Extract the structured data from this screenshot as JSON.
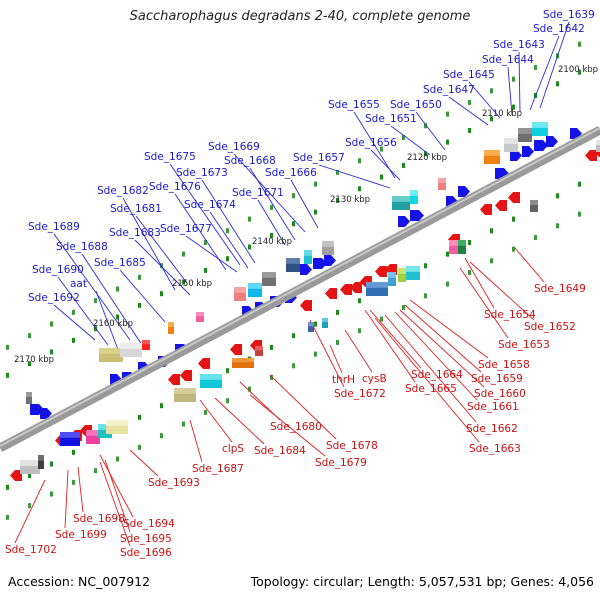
{
  "title": "Saccharophagus degradans 2-40, complete genome",
  "accession": "Accession: NC_007912",
  "topology": "Topology: circular; Length: 5,057,531 bp; Genes: 4,056",
  "positions": [
    "2100 kbp",
    "2110 kbp",
    "2120 kbp",
    "2130 kbp",
    "2140 kbp",
    "2150 kbp",
    "2160 kbp",
    "2170 kbp"
  ],
  "genes_top": [
    "Sde_1639",
    "Sde_1642",
    "Sde_1643",
    "Sde_1644",
    "Sde_1645",
    "Sde_1647",
    "Sde_1650",
    "Sde_1651",
    "Sde_1655",
    "Sde_1656",
    "Sde_1657",
    "Sde_1666",
    "Sde_1669",
    "Sde_1668",
    "Sde_1675",
    "Sde_1673",
    "Sde_1671",
    "Sde_1676",
    "Sde_1674",
    "Sde_1682",
    "Sde_1681",
    "Sde_1677",
    "Sde_1683",
    "Sde_1689",
    "Sde_1688",
    "Sde_1685",
    "Sde_1690",
    "aat",
    "Sde_1692"
  ],
  "genes_bottom": [
    "Sde_1649",
    "Sde_1654",
    "Sde_1652",
    "Sde_1653",
    "Sde_1658",
    "Sde_1659",
    "Sde_1660",
    "Sde_1661",
    "Sde_1662",
    "Sde_1663",
    "Sde_1664",
    "Sde_1665",
    "cysB",
    "thrH",
    "Sde_1672",
    "Sde_1678",
    "Sde_1680",
    "Sde_1679",
    "Sde_1684",
    "clpS",
    "Sde_1687",
    "Sde_1693",
    "Sde_1694",
    "Sde_1695",
    "Sde_1696",
    "Sde_1698",
    "Sde_1699",
    "Sde_1702"
  ],
  "colors": {
    "forward": "#1010e0",
    "reverse": "#e01010",
    "backbone": "#888888"
  }
}
